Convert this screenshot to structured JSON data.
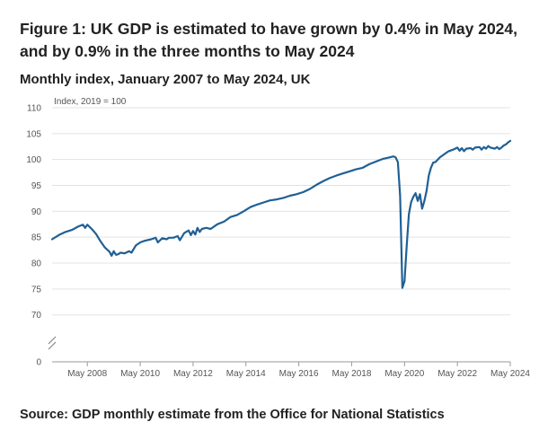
{
  "title": "Figure 1: UK GDP is estimated to have grown by 0.4% in May 2024, and by 0.9% in the three months to May 2024",
  "subtitle": "Monthly index, January 2007 to May 2024, UK",
  "source": "Source: GDP monthly estimate from the Office for National Statistics",
  "chart_data": {
    "type": "line",
    "ylabel": "Index, 2019 = 100",
    "y_ticks": [
      0,
      70,
      75,
      80,
      85,
      90,
      95,
      100,
      105,
      110
    ],
    "axis_break": true,
    "ylim": [
      67,
      110
    ],
    "x_tick_labels": [
      "May 2008",
      "May 2010",
      "May 2012",
      "May 2014",
      "May 2016",
      "May 2018",
      "May 2020",
      "May 2022",
      "May 2024"
    ],
    "x_tick_values": [
      2008.333,
      2010.333,
      2012.333,
      2014.333,
      2016.333,
      2018.333,
      2020.333,
      2022.333,
      2024.333
    ],
    "xlim": [
      2007.0,
      2024.333
    ],
    "color": "#206095",
    "grid": "horizontal",
    "series": [
      {
        "points": [
          [
            2007.0,
            84.6
          ],
          [
            2007.25,
            85.4
          ],
          [
            2007.5,
            86.0
          ],
          [
            2007.75,
            86.4
          ],
          [
            2008.0,
            87.1
          ],
          [
            2008.167,
            87.4
          ],
          [
            2008.25,
            86.8
          ],
          [
            2008.333,
            87.4
          ],
          [
            2008.5,
            86.6
          ],
          [
            2008.667,
            85.6
          ],
          [
            2008.833,
            84.2
          ],
          [
            2009.0,
            83.0
          ],
          [
            2009.167,
            82.2
          ],
          [
            2009.25,
            81.4
          ],
          [
            2009.333,
            82.3
          ],
          [
            2009.417,
            81.6
          ],
          [
            2009.5,
            81.7
          ],
          [
            2009.583,
            82.0
          ],
          [
            2009.75,
            81.9
          ],
          [
            2009.917,
            82.3
          ],
          [
            2010.0,
            82.0
          ],
          [
            2010.167,
            83.4
          ],
          [
            2010.333,
            84.0
          ],
          [
            2010.5,
            84.3
          ],
          [
            2010.75,
            84.6
          ],
          [
            2010.917,
            84.9
          ],
          [
            2011.0,
            84.0
          ],
          [
            2011.167,
            84.8
          ],
          [
            2011.333,
            84.6
          ],
          [
            2011.417,
            84.9
          ],
          [
            2011.583,
            84.9
          ],
          [
            2011.75,
            85.2
          ],
          [
            2011.833,
            84.4
          ],
          [
            2012.0,
            85.8
          ],
          [
            2012.167,
            86.3
          ],
          [
            2012.25,
            85.4
          ],
          [
            2012.333,
            86.2
          ],
          [
            2012.417,
            85.5
          ],
          [
            2012.5,
            86.8
          ],
          [
            2012.583,
            86.0
          ],
          [
            2012.667,
            86.6
          ],
          [
            2012.833,
            86.8
          ],
          [
            2013.0,
            86.6
          ],
          [
            2013.25,
            87.5
          ],
          [
            2013.5,
            88.0
          ],
          [
            2013.75,
            88.9
          ],
          [
            2014.0,
            89.3
          ],
          [
            2014.25,
            90.0
          ],
          [
            2014.5,
            90.8
          ],
          [
            2014.75,
            91.3
          ],
          [
            2015.0,
            91.7
          ],
          [
            2015.25,
            92.1
          ],
          [
            2015.5,
            92.3
          ],
          [
            2015.75,
            92.6
          ],
          [
            2016.0,
            93.0
          ],
          [
            2016.25,
            93.3
          ],
          [
            2016.5,
            93.7
          ],
          [
            2016.75,
            94.3
          ],
          [
            2017.0,
            95.1
          ],
          [
            2017.25,
            95.8
          ],
          [
            2017.5,
            96.4
          ],
          [
            2017.75,
            96.9
          ],
          [
            2018.0,
            97.3
          ],
          [
            2018.25,
            97.7
          ],
          [
            2018.5,
            98.1
          ],
          [
            2018.75,
            98.4
          ],
          [
            2019.0,
            99.1
          ],
          [
            2019.25,
            99.6
          ],
          [
            2019.5,
            100.1
          ],
          [
            2019.75,
            100.4
          ],
          [
            2019.917,
            100.6
          ],
          [
            2020.0,
            100.4
          ],
          [
            2020.083,
            99.5
          ],
          [
            2020.167,
            93.0
          ],
          [
            2020.25,
            75.2
          ],
          [
            2020.333,
            76.5
          ],
          [
            2020.417,
            83.5
          ],
          [
            2020.5,
            89.5
          ],
          [
            2020.583,
            91.8
          ],
          [
            2020.667,
            92.8
          ],
          [
            2020.75,
            93.5
          ],
          [
            2020.833,
            92.0
          ],
          [
            2020.917,
            93.3
          ],
          [
            2021.0,
            90.5
          ],
          [
            2021.083,
            92.0
          ],
          [
            2021.167,
            93.9
          ],
          [
            2021.25,
            96.9
          ],
          [
            2021.333,
            98.4
          ],
          [
            2021.417,
            99.4
          ],
          [
            2021.5,
            99.5
          ],
          [
            2021.667,
            100.4
          ],
          [
            2021.833,
            101.0
          ],
          [
            2022.0,
            101.6
          ],
          [
            2022.167,
            101.9
          ],
          [
            2022.333,
            102.3
          ],
          [
            2022.417,
            101.7
          ],
          [
            2022.5,
            102.2
          ],
          [
            2022.583,
            101.6
          ],
          [
            2022.667,
            102.1
          ],
          [
            2022.833,
            102.2
          ],
          [
            2022.917,
            101.9
          ],
          [
            2023.0,
            102.3
          ],
          [
            2023.167,
            102.4
          ],
          [
            2023.25,
            101.9
          ],
          [
            2023.333,
            102.4
          ],
          [
            2023.417,
            102.1
          ],
          [
            2023.5,
            102.6
          ],
          [
            2023.583,
            102.3
          ],
          [
            2023.667,
            102.2
          ],
          [
            2023.75,
            102.1
          ],
          [
            2023.833,
            102.4
          ],
          [
            2023.917,
            102.0
          ],
          [
            2024.0,
            102.3
          ],
          [
            2024.083,
            102.7
          ],
          [
            2024.167,
            102.9
          ],
          [
            2024.25,
            103.3
          ],
          [
            2024.333,
            103.6
          ]
        ]
      }
    ]
  }
}
